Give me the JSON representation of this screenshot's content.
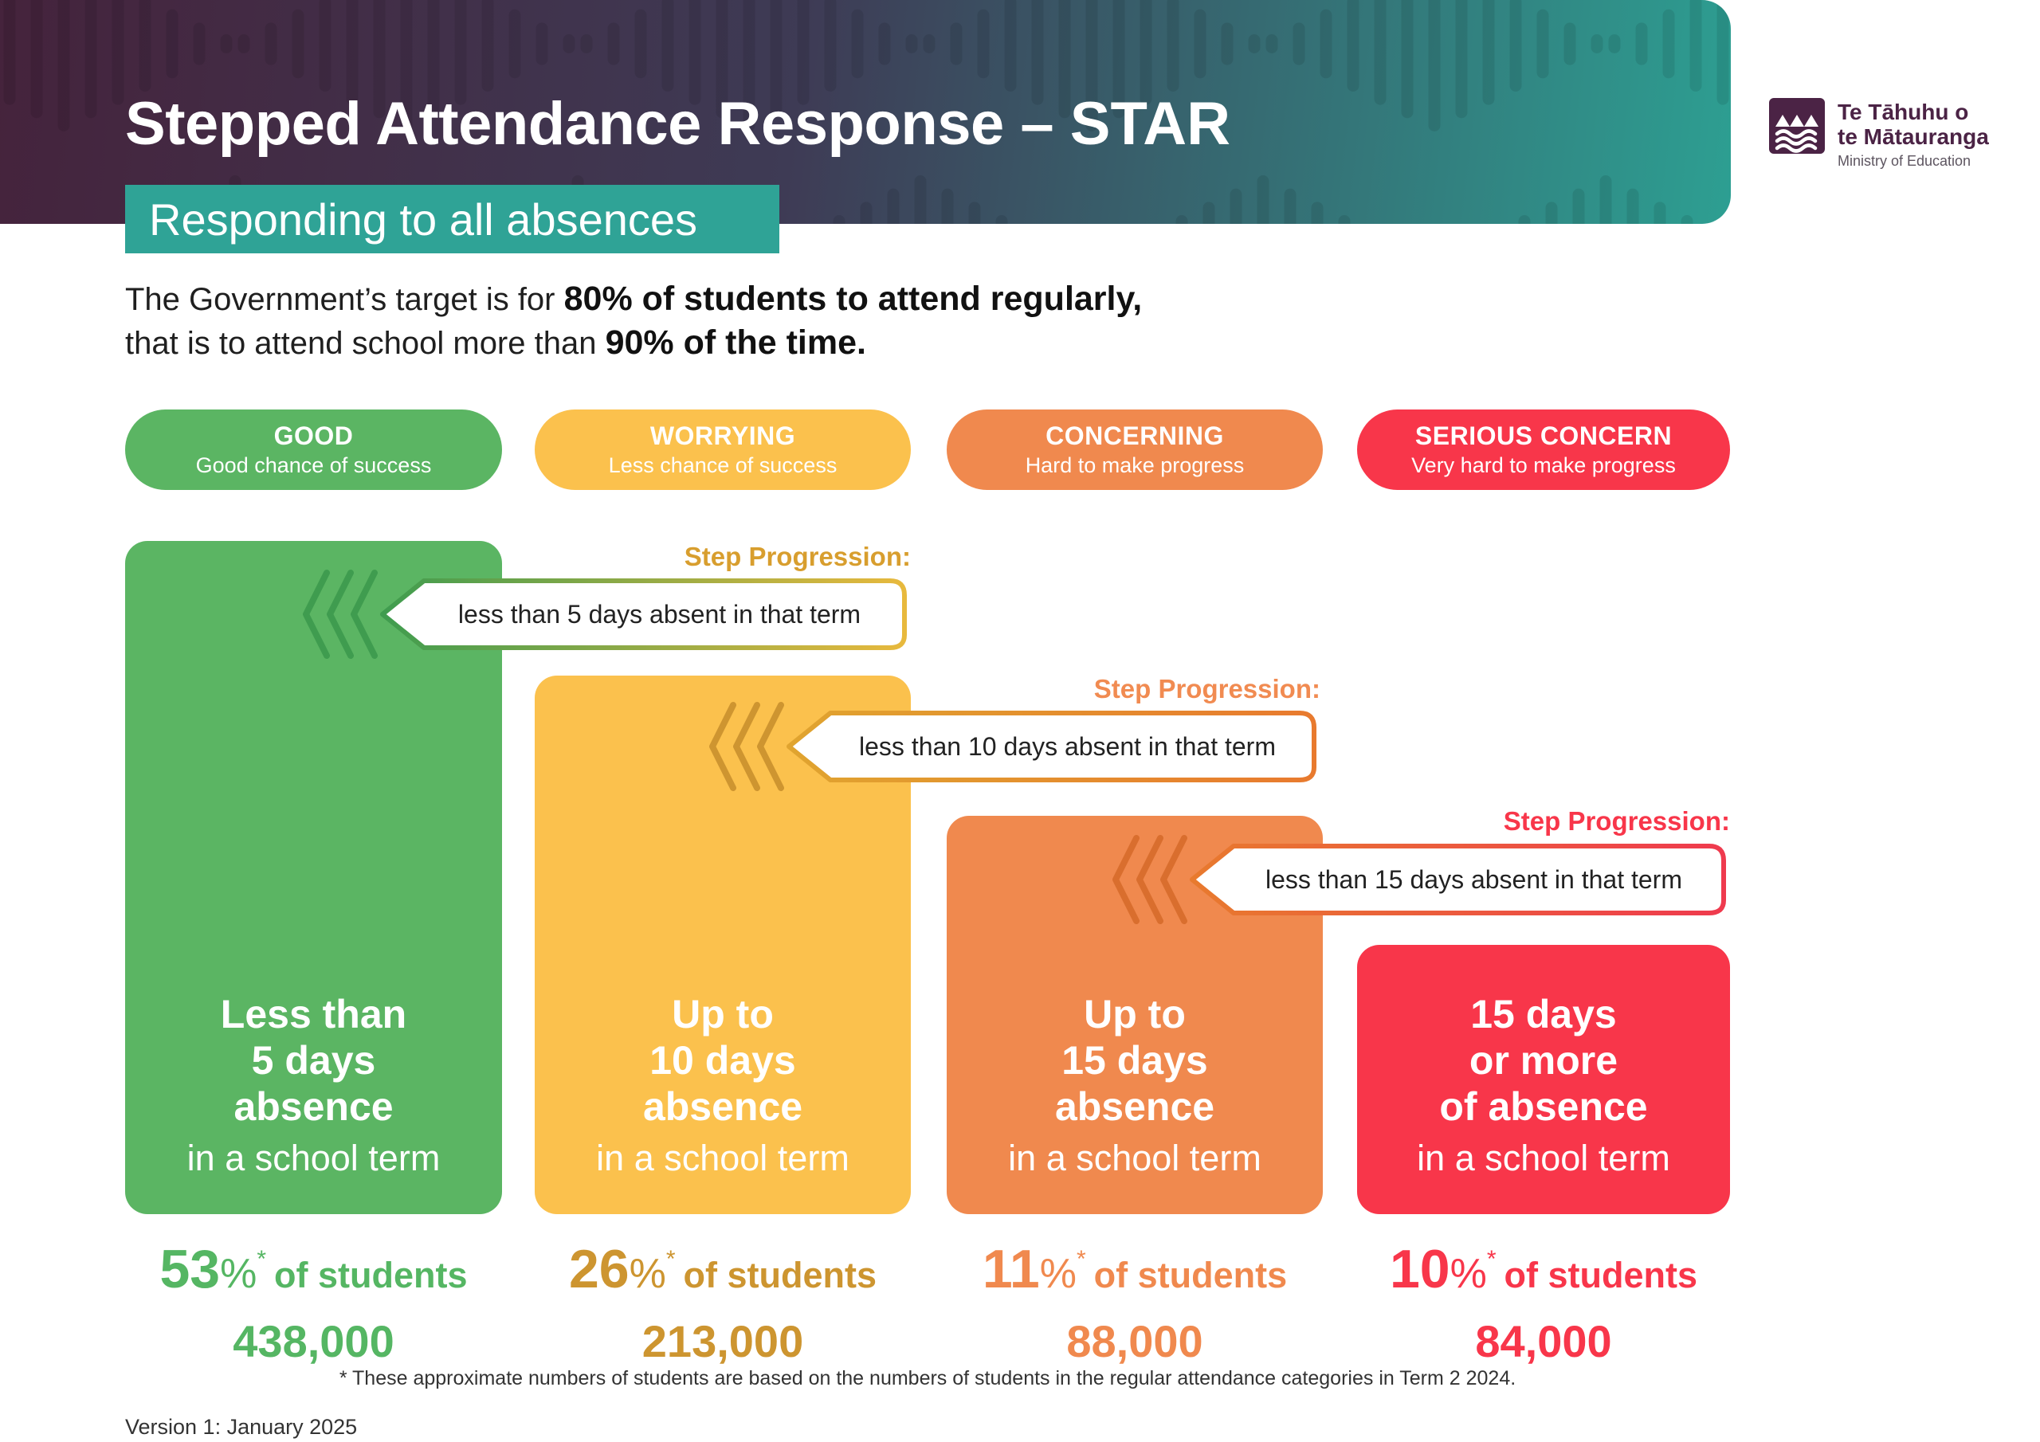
{
  "colors": {
    "header_gradient_start": "#45233C",
    "header_gradient_mid": "#3E3B55",
    "header_gradient_end": "#2D9F92",
    "banner_teal": "#2FA396",
    "logo_purple": "#4B2345"
  },
  "header": {
    "title_prefix": "Stepped Attendance Response – ",
    "title_emphasis": "STAR",
    "banner_label": "Responding to all absences",
    "logo": {
      "line1": "Te Tāhuhu o",
      "line2": "te Mātauranga",
      "line3": "Ministry of Education"
    }
  },
  "intro": {
    "line1_text": "The Government’s target is for ",
    "line1_bold": "80% of students to attend regularly,",
    "line2_text": "that is to attend school more than ",
    "line2_bold": "90% of the time."
  },
  "tiers": [
    {
      "id": "good",
      "pill_label": "GOOD",
      "pill_sublabel": "Good chance of success",
      "color": "#5BB563",
      "column_lines": [
        "Less than",
        "5 days",
        "absence"
      ],
      "column_subtitle": "in a school term",
      "stat_color": "#55B663",
      "stat_percent": "53",
      "stat_unit": "%",
      "stat_asterisk": "*",
      "stat_suffix": "of students",
      "stat_count": "438,000"
    },
    {
      "id": "worrying",
      "pill_label": "WORRYING",
      "pill_sublabel": "Less chance of success",
      "color": "#FBC14D",
      "column_lines": [
        "Up to",
        "10 days",
        "absence"
      ],
      "column_subtitle": "in a school term",
      "stat_color": "#CD9530",
      "stat_percent": "26",
      "stat_unit": "%",
      "stat_asterisk": "*",
      "stat_suffix": "of students",
      "stat_count": "213,000"
    },
    {
      "id": "concerning",
      "pill_label": "CONCERNING",
      "pill_sublabel": "Hard to make progress",
      "color": "#F0894E",
      "column_lines": [
        "Up to",
        "15 days",
        "absence"
      ],
      "column_subtitle": "in a school term",
      "stat_color": "#F0894E",
      "stat_percent": "11",
      "stat_unit": "%",
      "stat_asterisk": "*",
      "stat_suffix": "of students",
      "stat_count": "88,000"
    },
    {
      "id": "serious-concern",
      "pill_label": "SERIOUS CONCERN",
      "pill_sublabel": "Very hard to make progress",
      "color": "#F8364A",
      "column_lines": [
        "15 days",
        "or more",
        "of absence"
      ],
      "column_subtitle": "in a school term",
      "stat_color": "#F8364A",
      "stat_percent": "10",
      "stat_unit": "%",
      "stat_asterisk": "*",
      "stat_suffix": "of students",
      "stat_count": "84,000"
    }
  ],
  "steps": [
    {
      "label": "Step Progression:",
      "text": "less than 5 days absent in that term",
      "label_color": "#D89E2E",
      "grad_start": "#3F9C4F",
      "grad_end": "#E8B93D",
      "chevron_color": "#3F9C4F"
    },
    {
      "label": "Step Progression:",
      "text": "less than 10 days absent in that term",
      "label_color": "#F18B51",
      "grad_start": "#E0A42F",
      "grad_end": "#E87A2E",
      "chevron_color": "#CE9530"
    },
    {
      "label": "Step Progression:",
      "text": "less than 15 days absent in that term",
      "label_color": "#F8364A",
      "grad_start": "#E87A2E",
      "grad_end": "#EF3A4E",
      "chevron_color": "#D96E2E"
    }
  ],
  "footnote": "* These approximate numbers of students are based on the numbers of students in the regular attendance categories in Term 2 2024.",
  "version": "Version 1: January 2025"
}
